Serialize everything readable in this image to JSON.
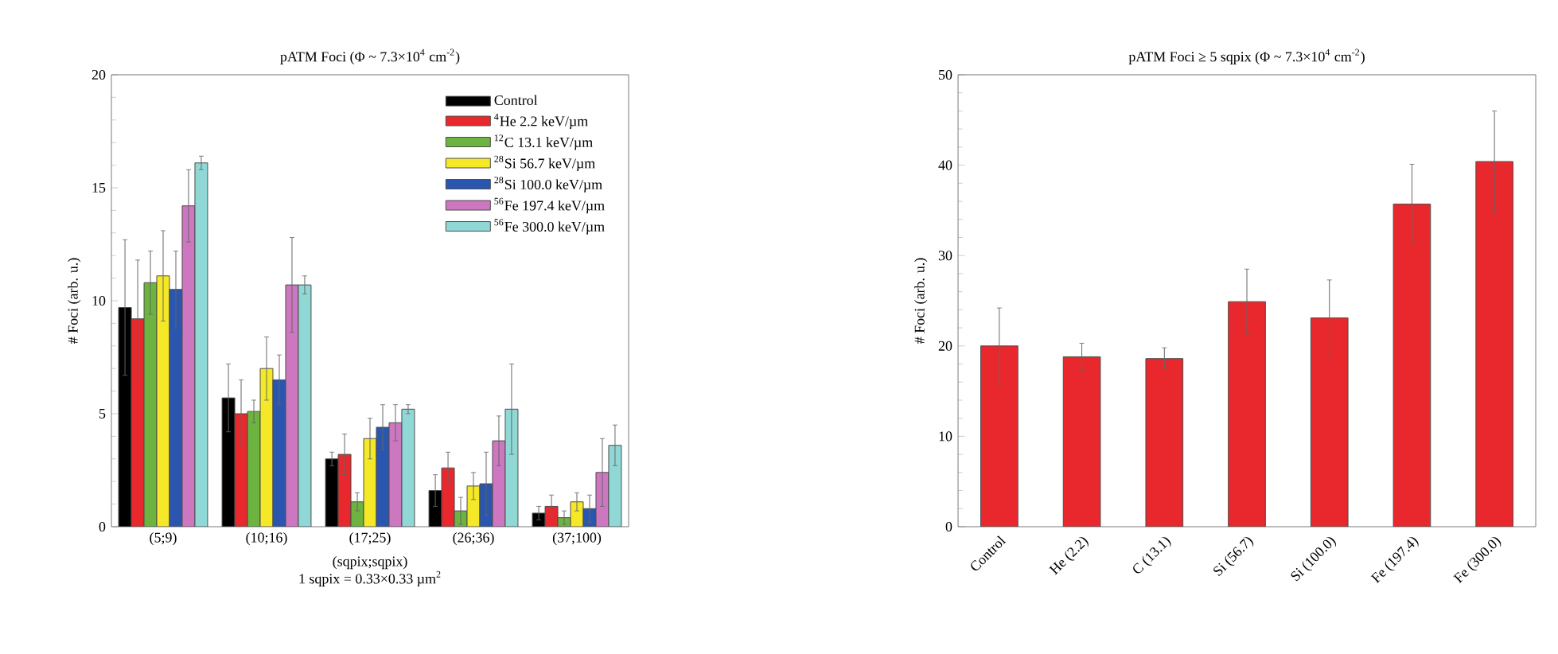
{
  "chart_data": [
    {
      "type": "bar",
      "title": "pATM Foci (Φ ~ 7.3×10$^{4}$ cm$^{-2}$)",
      "xlabel": "(sqpix;sqpix)",
      "ylabel": "# Foci (arb. u.)",
      "annotations": [
        "1 sqpix = 0.33×0.33 µm$^{2}$"
      ],
      "categories": [
        "(5;9)",
        "(10;16)",
        "(17;25)",
        "(26;36)",
        "(37;100)"
      ],
      "series": [
        {
          "name": "Control",
          "color": "#000000",
          "values": [
            9.7,
            5.7,
            3.0,
            1.6,
            0.6
          ],
          "errors": [
            3.0,
            1.5,
            0.3,
            0.7,
            0.3
          ]
        },
        {
          "name": "$^{4}$He    2.2 keV/µm",
          "color": "#e8282c",
          "values": [
            9.2,
            5.0,
            3.2,
            2.6,
            0.9
          ],
          "errors": [
            2.6,
            1.5,
            0.9,
            0.7,
            0.5
          ]
        },
        {
          "name": "$^{12}$C   13.1 keV/µm",
          "color": "#6db33f",
          "values": [
            10.8,
            5.1,
            1.1,
            0.7,
            0.4
          ],
          "errors": [
            1.4,
            0.5,
            0.4,
            0.6,
            0.3
          ]
        },
        {
          "name": "$^{28}$Si  56.7 keV/µm",
          "color": "#f5e827",
          "values": [
            11.1,
            7.0,
            3.9,
            1.8,
            1.1
          ],
          "errors": [
            2.0,
            1.4,
            0.9,
            0.6,
            0.4
          ]
        },
        {
          "name": "$^{28}$Si 100.0 keV/µm",
          "color": "#2a56b0",
          "values": [
            10.5,
            6.5,
            4.4,
            1.9,
            0.8
          ],
          "errors": [
            1.7,
            1.1,
            1.0,
            1.4,
            0.6
          ]
        },
        {
          "name": "$^{56}$Fe 197.4 keV/µm",
          "color": "#cc77c0",
          "values": [
            14.2,
            10.7,
            4.6,
            3.8,
            2.4
          ],
          "errors": [
            1.6,
            2.1,
            0.8,
            1.1,
            1.5
          ]
        },
        {
          "name": "$^{56}$Fe 300.0 keV/µm",
          "color": "#8fd8d6",
          "values": [
            16.1,
            10.7,
            5.2,
            5.2,
            3.6
          ],
          "errors": [
            0.3,
            0.4,
            0.2,
            2.0,
            0.9
          ]
        }
      ],
      "ylim": [
        0,
        20
      ],
      "yticks": [
        0,
        5,
        10,
        15,
        20
      ],
      "legend": "top right"
    },
    {
      "type": "bar",
      "title": "pATM Foci ≥ 5 sqpix (Φ ~ 7.3×10$^{4}$ cm$^{-2}$)",
      "ylabel": "# Foci (arb. u.)",
      "categories": [
        "Control",
        "He (2.2)",
        "C (13.1)",
        "Si (56.7)",
        "Si (100.0)",
        "Fe (197.4)",
        "Fe (300.0)"
      ],
      "values": [
        20.0,
        18.8,
        18.6,
        24.9,
        23.1,
        35.7,
        40.4
      ],
      "errors": [
        4.2,
        1.5,
        1.2,
        3.6,
        4.2,
        4.4,
        5.6
      ],
      "color": "#e8282c",
      "ylim": [
        0,
        50
      ],
      "yticks": [
        0,
        10,
        20,
        30,
        40,
        50
      ]
    }
  ]
}
